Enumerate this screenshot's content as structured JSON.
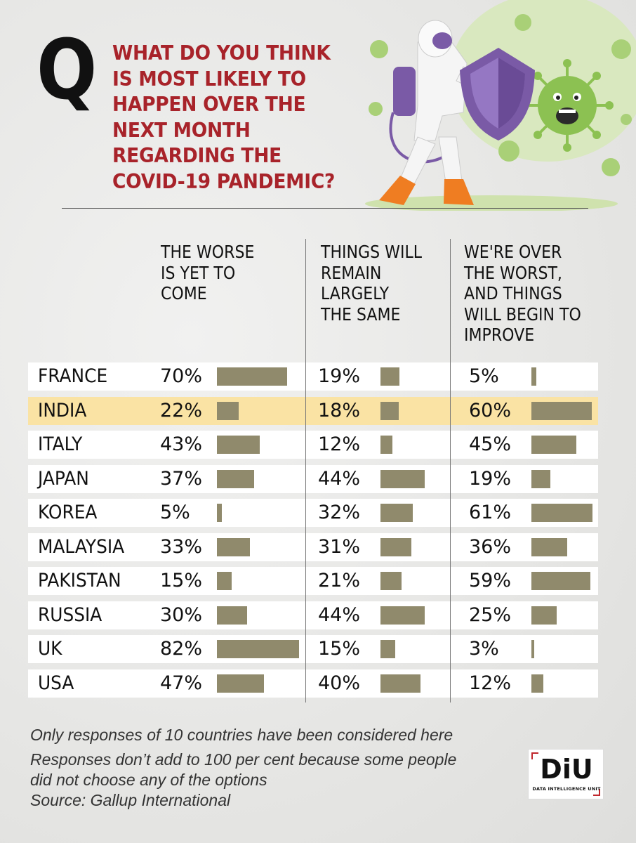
{
  "header": {
    "q_letter": "Q",
    "question_lines": [
      "WHAT DO YOU THINK",
      "IS MOST LIKELY TO",
      "HAPPEN OVER THE",
      "NEXT MONTH",
      "REGARDING THE",
      "COVID-19 PANDEMIC?"
    ]
  },
  "chart_data": {
    "type": "table",
    "columns": [
      {
        "label_lines": [
          "THE WORSE",
          "IS YET TO",
          "COME"
        ]
      },
      {
        "label_lines": [
          "THINGS WILL",
          "REMAIN",
          "LARGELY",
          "THE SAME"
        ]
      },
      {
        "label_lines": [
          "WE'RE OVER",
          "THE WORST,",
          "AND THINGS",
          "WILL BEGIN TO",
          "IMPROVE"
        ]
      }
    ],
    "rows": [
      {
        "country": "FRANCE",
        "values": [
          70,
          19,
          5
        ],
        "labels": [
          "70%",
          "19%",
          "5%"
        ],
        "highlight": false
      },
      {
        "country": "INDIA",
        "values": [
          22,
          18,
          60
        ],
        "labels": [
          "22%",
          "18%",
          "60%"
        ],
        "highlight": true
      },
      {
        "country": "ITALY",
        "values": [
          43,
          12,
          45
        ],
        "labels": [
          "43%",
          "12%",
          "45%"
        ],
        "highlight": false
      },
      {
        "country": "JAPAN",
        "values": [
          37,
          44,
          19
        ],
        "labels": [
          "37%",
          "44%",
          "19%"
        ],
        "highlight": false
      },
      {
        "country": "KOREA",
        "values": [
          5,
          32,
          61
        ],
        "labels": [
          "5%",
          "32%",
          "61%"
        ],
        "highlight": false
      },
      {
        "country": "MALAYSIA",
        "values": [
          33,
          31,
          36
        ],
        "labels": [
          "33%",
          "31%",
          "36%"
        ],
        "highlight": false
      },
      {
        "country": "PAKISTAN",
        "values": [
          15,
          21,
          59
        ],
        "labels": [
          "15%",
          "21%",
          "59%"
        ],
        "highlight": false
      },
      {
        "country": "RUSSIA",
        "values": [
          30,
          44,
          25
        ],
        "labels": [
          "30%",
          "44%",
          "25%"
        ],
        "highlight": false
      },
      {
        "country": "UK",
        "values": [
          82,
          15,
          3
        ],
        "labels": [
          "82%",
          "15%",
          "3%"
        ],
        "highlight": false
      },
      {
        "country": "USA",
        "values": [
          47,
          40,
          12
        ],
        "labels": [
          "47%",
          "40%",
          "12%"
        ],
        "highlight": false
      }
    ],
    "value_unit": "%",
    "bar_color": "#908a6c",
    "highlight_color": "#fae3a4"
  },
  "notes": {
    "line1": "Only responses of 10 countries have been considered here",
    "line2": "Responses don’t add to 100 per cent because some people",
    "line3": "did not choose any of the options",
    "source": "Source: Gallup International"
  },
  "logo": {
    "text": "DiU",
    "subtitle": "DATA INTELLIGENCE UNIT"
  },
  "colors": {
    "question_red": "#a8232a",
    "virus_green": "#8cc152",
    "shield_purple": "#7a5aa6",
    "suit_orange": "#ef7d22"
  }
}
